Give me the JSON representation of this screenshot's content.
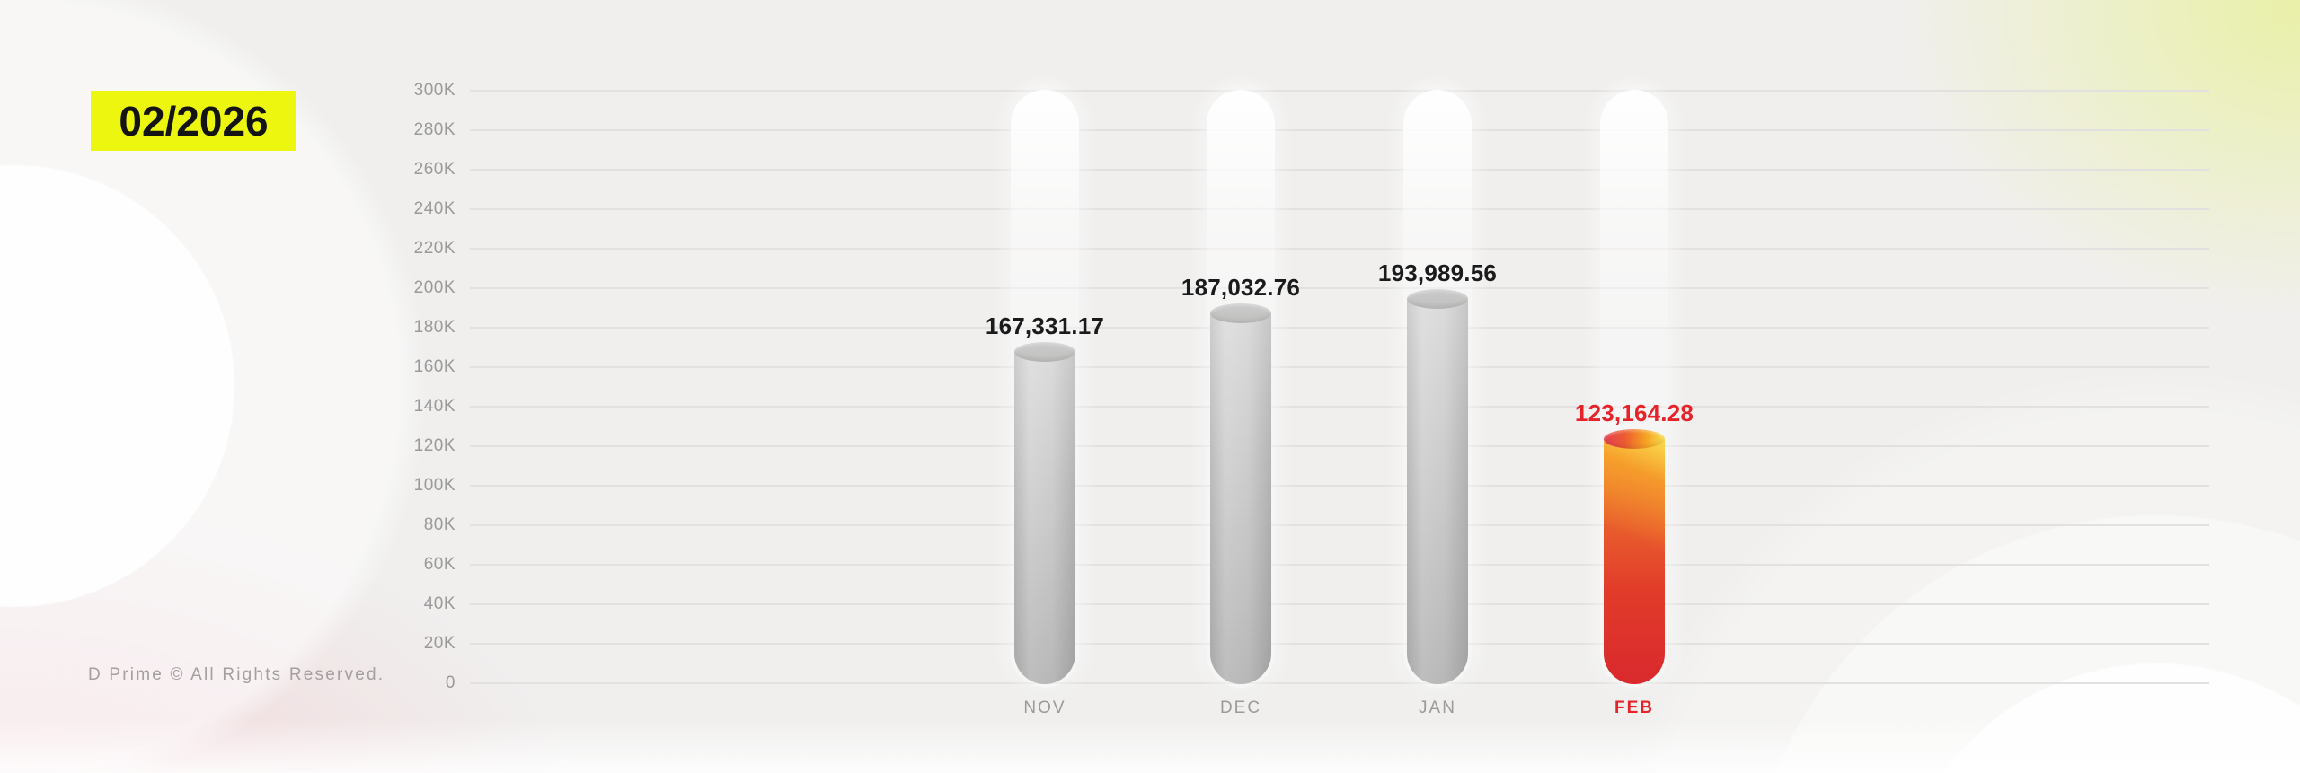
{
  "badge": {
    "label": "02/2026"
  },
  "footer": {
    "copyright": "D Prime © All Rights Reserved."
  },
  "chart_data": {
    "type": "bar",
    "title": "",
    "xlabel": "",
    "ylabel": "",
    "categories": [
      "NOV",
      "DEC",
      "JAN",
      "FEB"
    ],
    "values": [
      167331.17,
      187032.76,
      193989.56,
      123164.28
    ],
    "value_labels": [
      "167,331.17",
      "187,032.76",
      "193,989.56",
      "123,164.28"
    ],
    "highlight_index": 3,
    "ylim": [
      0,
      300000
    ],
    "ytick_step": 20000,
    "ytick_labels": [
      "0",
      "20K",
      "40K",
      "60K",
      "80K",
      "100K",
      "120K",
      "140K",
      "160K",
      "180K",
      "200K",
      "220K",
      "240K",
      "260K",
      "280K",
      "300K"
    ],
    "grid": true,
    "legend": false,
    "colors": {
      "background": "#f0efee",
      "gridline": "#e2e1df",
      "axis_text": "#9a9a9a",
      "value_text": "#1b1b1b",
      "highlight_text": "#e52329",
      "bar_gray": "#c9c9c9",
      "bar_hot_top": "#f5a228",
      "bar_hot_bottom": "#d9292d",
      "badge_bg": "#ecf60e",
      "badge_text": "#141414"
    }
  }
}
